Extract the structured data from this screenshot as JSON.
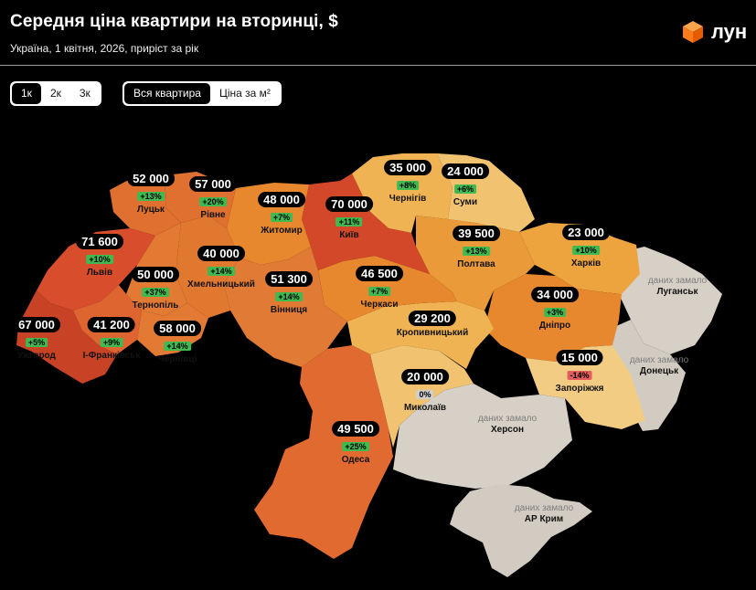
{
  "header": {
    "title": "Середня ціна квартири на вторинці, $",
    "subtitle": "Україна, 1 квітня, 2026, приріст за рік",
    "logo_text": "лун"
  },
  "room_tabs": [
    {
      "label": "1к",
      "active": true
    },
    {
      "label": "2к",
      "active": false
    },
    {
      "label": "3к",
      "active": false
    }
  ],
  "price_tabs": [
    {
      "label": "Вся квартира",
      "active": true
    },
    {
      "label": "Ціна за м²",
      "active": false
    }
  ],
  "regions": [
    {
      "city": "Луцьк",
      "price": "52 000",
      "change": "+13%",
      "trend": "up"
    },
    {
      "city": "Рівне",
      "price": "57 000",
      "change": "+20%",
      "trend": "up"
    },
    {
      "city": "Житомир",
      "price": "48 000",
      "change": "+7%",
      "trend": "up"
    },
    {
      "city": "Київ",
      "price": "70 000",
      "change": "+11%",
      "trend": "up"
    },
    {
      "city": "Чернігів",
      "price": "35 000",
      "change": "+8%",
      "trend": "up"
    },
    {
      "city": "Суми",
      "price": "24 000",
      "change": "+6%",
      "trend": "up"
    },
    {
      "city": "Львів",
      "price": "71 600",
      "change": "+10%",
      "trend": "up"
    },
    {
      "city": "Хмельницький",
      "price": "40 000",
      "change": "+14%",
      "trend": "up"
    },
    {
      "city": "Полтава",
      "price": "39 500",
      "change": "+13%",
      "trend": "up"
    },
    {
      "city": "Харків",
      "price": "23 000",
      "change": "+10%",
      "trend": "up"
    },
    {
      "city": "Тернопіль",
      "price": "50 000",
      "change": "+37%",
      "trend": "up"
    },
    {
      "city": "Вінниця",
      "price": "51 300",
      "change": "+14%",
      "trend": "up"
    },
    {
      "city": "Черкаси",
      "price": "46 500",
      "change": "+7%",
      "trend": "up"
    },
    {
      "city": "Дніпро",
      "price": "34 000",
      "change": "+3%",
      "trend": "up"
    },
    {
      "city": "Ужгород",
      "price": "67 000",
      "change": "+5%",
      "trend": "up"
    },
    {
      "city": "І-Франківськ",
      "price": "41 200",
      "change": "+9%",
      "trend": "up"
    },
    {
      "city": "Чернівці",
      "price": "58 000",
      "change": "+14%",
      "trend": "up"
    },
    {
      "city": "Кропивницький",
      "price": "29 200",
      "change": "",
      "trend": "none"
    },
    {
      "city": "Запоріжжя",
      "price": "15 000",
      "change": "-14%",
      "trend": "down"
    },
    {
      "city": "Миколаїв",
      "price": "20 000",
      "change": "0%",
      "trend": "zero"
    },
    {
      "city": "Одеса",
      "price": "49 500",
      "change": "+25%",
      "trend": "up"
    }
  ],
  "no_data": [
    {
      "note": "даних замало",
      "city": "Луганськ"
    },
    {
      "note": "даних замало",
      "city": "Донецьк"
    },
    {
      "note": "даних замало",
      "city": "Херсон"
    },
    {
      "note": "даних замало",
      "city": "АР Крим"
    }
  ],
  "colors": {
    "up": "#3fb950",
    "down": "#e35d5d",
    "zero": "#cfcfcf",
    "no_data_fill": "#d7d0c6",
    "high": "#d4482a",
    "mid_high": "#e06a30",
    "mid": "#e8882e",
    "low": "#eda13d",
    "lowest": "#f1c371"
  }
}
